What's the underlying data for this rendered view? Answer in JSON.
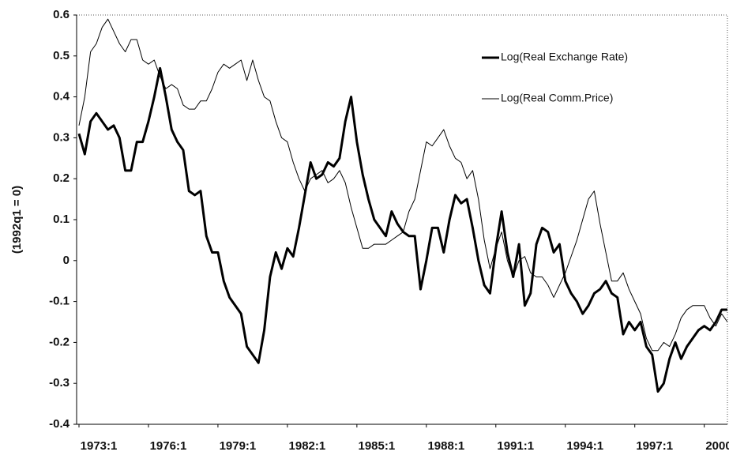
{
  "chart_data": {
    "type": "line",
    "y_label": "(1992q1 = 0)",
    "categories": [
      "1973:1",
      null,
      null,
      null,
      null,
      null,
      null,
      null,
      null,
      null,
      null,
      null,
      "1976:1",
      null,
      null,
      null,
      null,
      null,
      null,
      null,
      null,
      null,
      null,
      null,
      "1979:1",
      null,
      null,
      null,
      null,
      null,
      null,
      null,
      null,
      null,
      null,
      null,
      "1982:1",
      null,
      null,
      null,
      null,
      null,
      null,
      null,
      null,
      null,
      null,
      null,
      "1985:1",
      null,
      null,
      null,
      null,
      null,
      null,
      null,
      null,
      null,
      null,
      null,
      "1988:1",
      null,
      null,
      null,
      null,
      null,
      null,
      null,
      null,
      null,
      null,
      null,
      "1991:1",
      null,
      null,
      null,
      null,
      null,
      null,
      null,
      null,
      null,
      null,
      null,
      "1994:1",
      null,
      null,
      null,
      null,
      null,
      null,
      null,
      null,
      null,
      null,
      null,
      "1997:1",
      null,
      null,
      null,
      null,
      null,
      null,
      null,
      null,
      null,
      null,
      null,
      "2000:1",
      null,
      null,
      null,
      null
    ],
    "series": [
      {
        "name": "Log(Real Exchange Rate)",
        "color": "#000000",
        "width": 3,
        "values": [
          0.31,
          0.26,
          0.34,
          0.36,
          0.34,
          0.32,
          0.33,
          0.3,
          0.22,
          0.22,
          0.29,
          0.29,
          0.34,
          0.4,
          0.47,
          0.4,
          0.32,
          0.29,
          0.27,
          0.17,
          0.16,
          0.17,
          0.06,
          0.02,
          0.02,
          -0.05,
          -0.09,
          -0.11,
          -0.13,
          -0.21,
          -0.23,
          -0.25,
          -0.17,
          -0.04,
          0.02,
          -0.02,
          0.03,
          0.01,
          0.08,
          0.16,
          0.24,
          0.2,
          0.21,
          0.24,
          0.23,
          0.25,
          0.34,
          0.4,
          0.29,
          0.21,
          0.15,
          0.1,
          0.08,
          0.06,
          0.12,
          0.09,
          0.07,
          0.06,
          0.06,
          -0.07,
          0.0,
          0.08,
          0.08,
          0.02,
          0.1,
          0.16,
          0.14,
          0.15,
          0.08,
          0.0,
          -0.06,
          -0.08,
          0.03,
          0.12,
          0.02,
          -0.04,
          0.04,
          -0.11,
          -0.08,
          0.04,
          0.08,
          0.07,
          0.02,
          0.04,
          -0.05,
          -0.08,
          -0.1,
          -0.13,
          -0.11,
          -0.08,
          -0.07,
          -0.05,
          -0.08,
          -0.09,
          -0.18,
          -0.15,
          -0.17,
          -0.15,
          -0.21,
          -0.23,
          -0.32,
          -0.3,
          -0.24,
          -0.2,
          -0.24,
          -0.21,
          -0.19,
          -0.17,
          -0.16,
          -0.17,
          -0.15,
          -0.12,
          -0.12
        ]
      },
      {
        "name": "Log(Real Comm.Price)",
        "color": "#000000",
        "width": 1,
        "values": [
          0.33,
          0.4,
          0.51,
          0.53,
          0.57,
          0.59,
          0.56,
          0.53,
          0.51,
          0.54,
          0.54,
          0.49,
          0.48,
          0.49,
          0.45,
          0.42,
          0.43,
          0.42,
          0.38,
          0.37,
          0.37,
          0.39,
          0.39,
          0.42,
          0.46,
          0.48,
          0.47,
          0.48,
          0.49,
          0.44,
          0.49,
          0.44,
          0.4,
          0.39,
          0.34,
          0.3,
          0.29,
          0.24,
          0.2,
          0.17,
          0.2,
          0.21,
          0.22,
          0.19,
          0.2,
          0.22,
          0.19,
          0.13,
          0.08,
          0.03,
          0.03,
          0.04,
          0.04,
          0.04,
          0.05,
          0.06,
          0.07,
          0.12,
          0.15,
          0.22,
          0.29,
          0.28,
          0.3,
          0.32,
          0.28,
          0.25,
          0.24,
          0.2,
          0.22,
          0.15,
          0.05,
          -0.02,
          0.03,
          0.07,
          0.0,
          -0.04,
          0.0,
          0.01,
          -0.03,
          -0.04,
          -0.04,
          -0.06,
          -0.09,
          -0.06,
          -0.03,
          0.01,
          0.05,
          0.1,
          0.15,
          0.17,
          0.09,
          0.02,
          -0.05,
          -0.05,
          -0.03,
          -0.07,
          -0.1,
          -0.13,
          -0.19,
          -0.22,
          -0.22,
          -0.2,
          -0.21,
          -0.18,
          -0.14,
          -0.12,
          -0.11,
          -0.11,
          -0.11,
          -0.14,
          -0.16,
          -0.13,
          -0.15
        ]
      }
    ],
    "ylim": [
      -0.4,
      0.6
    ],
    "yticks": [
      0.6,
      0.5,
      0.4,
      0.3,
      0.2,
      0.1,
      0,
      -0.1,
      -0.2,
      -0.3,
      -0.4
    ],
    "legend": "top-right",
    "grid": false
  }
}
